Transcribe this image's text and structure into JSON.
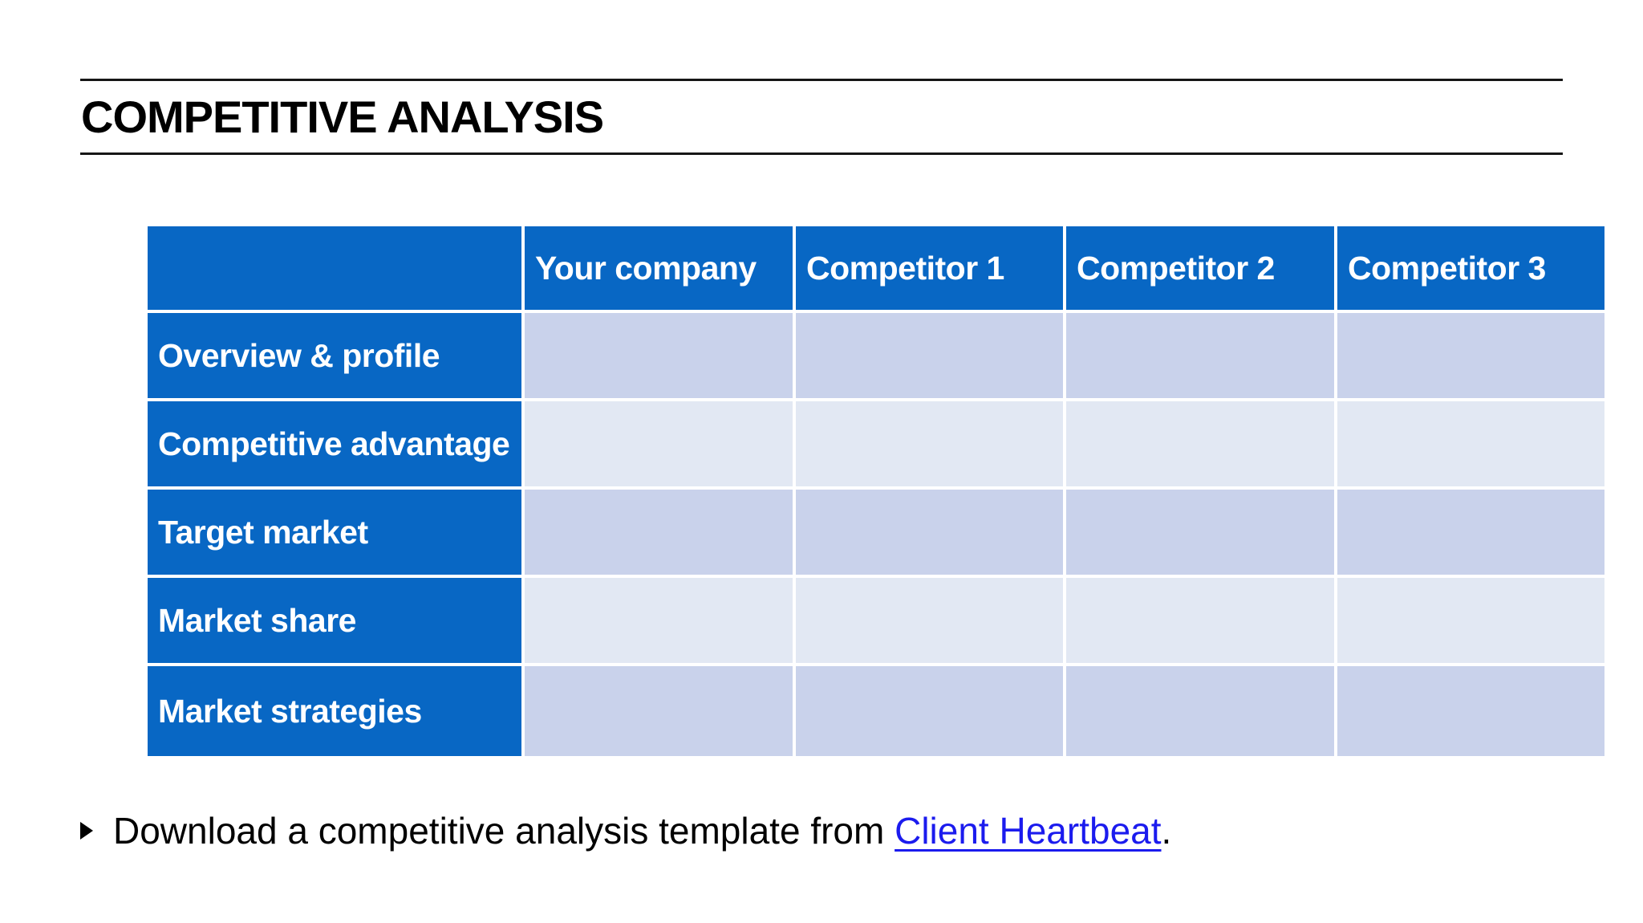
{
  "header": {
    "title": "COMPETITIVE ANALYSIS"
  },
  "table": {
    "columns": [
      "",
      "Your company",
      "Competitor 1",
      "Competitor 2",
      "Competitor 3"
    ],
    "rows": [
      {
        "label": "Overview & profile",
        "values": [
          "",
          "",
          "",
          ""
        ]
      },
      {
        "label": "Competitive advantage",
        "values": [
          "",
          "",
          "",
          ""
        ]
      },
      {
        "label": "Target market",
        "values": [
          "",
          "",
          "",
          ""
        ]
      },
      {
        "label": "Market share",
        "values": [
          "",
          "",
          "",
          ""
        ]
      },
      {
        "label": "Market strategies",
        "values": [
          "",
          "",
          "",
          ""
        ]
      }
    ]
  },
  "footnote": {
    "bullet_icon": "triangle-right",
    "text_before_link": "Download a competitive analysis template from ",
    "link_text": "Client Heartbeat",
    "text_after_link": "."
  },
  "colors": {
    "table_header_blue": "#0867C4",
    "row_fill_light": "#C9D2EB",
    "row_fill_lighter": "#E2E8F3",
    "link_blue": "#1B1BEE",
    "title_text": "#000000",
    "table_header_text": "#FFFFFF"
  }
}
